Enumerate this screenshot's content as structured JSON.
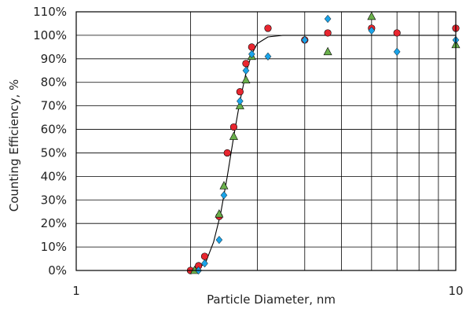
{
  "chart_data": {
    "type": "scatter",
    "title": "",
    "xlabel": "Particle Diameter, nm",
    "ylabel": "Counting Efficiency, %",
    "x_scale": "log",
    "xlim": [
      1,
      10
    ],
    "ylim": [
      0,
      110
    ],
    "x_tick_labels": [
      "1",
      "10"
    ],
    "y_tick_labels": [
      "0%",
      "10%",
      "20%",
      "30%",
      "40%",
      "50%",
      "60%",
      "70%",
      "80%",
      "90%",
      "100%",
      "110%"
    ],
    "grid": true,
    "legend": "none",
    "series": [
      {
        "marker": "circle",
        "color": "#e8262f",
        "points": [
          {
            "x": 2.0,
            "y": 0
          },
          {
            "x": 2.1,
            "y": 2
          },
          {
            "x": 2.18,
            "y": 6
          },
          {
            "x": 2.38,
            "y": 23
          },
          {
            "x": 2.5,
            "y": 50
          },
          {
            "x": 2.6,
            "y": 61
          },
          {
            "x": 2.7,
            "y": 76
          },
          {
            "x": 2.8,
            "y": 88
          },
          {
            "x": 2.9,
            "y": 95
          },
          {
            "x": 3.2,
            "y": 103
          },
          {
            "x": 4.0,
            "y": 98
          },
          {
            "x": 4.6,
            "y": 101
          },
          {
            "x": 6.0,
            "y": 103
          },
          {
            "x": 7.0,
            "y": 101
          },
          {
            "x": 10.0,
            "y": 103
          }
        ]
      },
      {
        "marker": "triangle",
        "color": "#6ab04c",
        "points": [
          {
            "x": 2.05,
            "y": 0
          },
          {
            "x": 2.38,
            "y": 24
          },
          {
            "x": 2.45,
            "y": 36
          },
          {
            "x": 2.6,
            "y": 57
          },
          {
            "x": 2.7,
            "y": 70
          },
          {
            "x": 2.8,
            "y": 81
          },
          {
            "x": 2.9,
            "y": 91
          },
          {
            "x": 4.6,
            "y": 93
          },
          {
            "x": 6.0,
            "y": 108
          },
          {
            "x": 10.0,
            "y": 96
          }
        ]
      },
      {
        "marker": "diamond",
        "color": "#1aa3e8",
        "points": [
          {
            "x": 2.1,
            "y": 0
          },
          {
            "x": 2.18,
            "y": 3
          },
          {
            "x": 2.38,
            "y": 13
          },
          {
            "x": 2.45,
            "y": 32
          },
          {
            "x": 2.7,
            "y": 72
          },
          {
            "x": 2.8,
            "y": 85
          },
          {
            "x": 2.9,
            "y": 92
          },
          {
            "x": 3.2,
            "y": 91
          },
          {
            "x": 4.0,
            "y": 98
          },
          {
            "x": 4.6,
            "y": 107
          },
          {
            "x": 6.0,
            "y": 102
          },
          {
            "x": 7.0,
            "y": 93
          },
          {
            "x": 10.0,
            "y": 98
          }
        ]
      }
    ],
    "fit_curve": {
      "color": "#000000",
      "points": [
        {
          "x": 1.0,
          "y": 0
        },
        {
          "x": 2.0,
          "y": 0
        },
        {
          "x": 2.1,
          "y": 0.5
        },
        {
          "x": 2.2,
          "y": 4
        },
        {
          "x": 2.3,
          "y": 12
        },
        {
          "x": 2.4,
          "y": 24
        },
        {
          "x": 2.5,
          "y": 40
        },
        {
          "x": 2.6,
          "y": 57
        },
        {
          "x": 2.7,
          "y": 72
        },
        {
          "x": 2.8,
          "y": 84
        },
        {
          "x": 2.9,
          "y": 92
        },
        {
          "x": 3.0,
          "y": 96.5
        },
        {
          "x": 3.2,
          "y": 99.3
        },
        {
          "x": 3.5,
          "y": 100
        },
        {
          "x": 10.0,
          "y": 100
        }
      ]
    }
  }
}
